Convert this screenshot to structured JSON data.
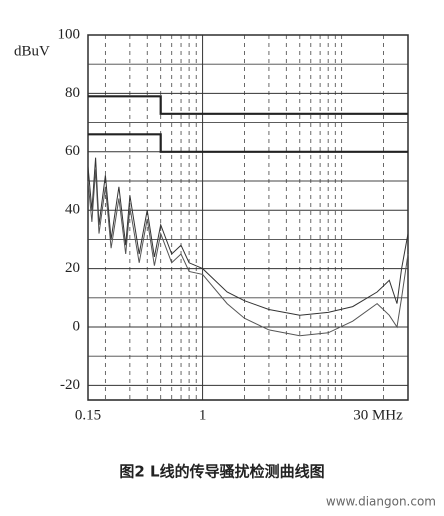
{
  "chart_data": {
    "type": "line",
    "y_label": "dBuV",
    "caption": "图2 L线的传导骚扰检测曲线图",
    "watermark": "www.diangon.com",
    "log_x": true,
    "grid": true,
    "xlim": [
      0.15,
      30
    ],
    "xticks": [
      0.15,
      1,
      {
        "value": 30,
        "label": "30 MHz"
      }
    ],
    "xminor": [
      0.2,
      0.3,
      0.4,
      0.5,
      0.6,
      0.7,
      0.8,
      0.9,
      2,
      3,
      4,
      5,
      6,
      7,
      8,
      9,
      10,
      20
    ],
    "ylim": [
      -25,
      100
    ],
    "yticks": [
      -20,
      0,
      20,
      40,
      60,
      80,
      100
    ],
    "yminor": [
      -10,
      10,
      30,
      50,
      70,
      90
    ],
    "series": [
      {
        "color": "#222",
        "x": [
          0.15,
          0.5,
          0.5,
          30
        ],
        "values": [
          79,
          79,
          73,
          73
        ]
      },
      {
        "color": "#222",
        "x": [
          0.15,
          0.5,
          0.5,
          30
        ],
        "values": [
          66,
          66,
          60,
          60
        ]
      },
      {
        "color": "#333",
        "x": [
          0.15,
          0.16,
          0.17,
          0.18,
          0.2,
          0.22,
          0.25,
          0.28,
          0.3,
          0.35,
          0.4,
          0.45,
          0.5,
          0.6,
          0.7,
          0.8,
          1,
          1.5,
          2,
          3,
          5,
          8,
          12,
          18,
          22,
          25,
          27,
          30
        ],
        "values": [
          55,
          40,
          58,
          35,
          52,
          30,
          48,
          28,
          45,
          25,
          40,
          24,
          35,
          25,
          28,
          22,
          20,
          12,
          9,
          6,
          4,
          5,
          7,
          12,
          16,
          8,
          20,
          32
        ]
      },
      {
        "color": "#555",
        "x": [
          0.15,
          0.16,
          0.17,
          0.18,
          0.2,
          0.22,
          0.25,
          0.28,
          0.3,
          0.35,
          0.4,
          0.45,
          0.5,
          0.6,
          0.7,
          0.8,
          1,
          1.5,
          2,
          3,
          5,
          8,
          12,
          18,
          22,
          25,
          27,
          30
        ],
        "values": [
          50,
          36,
          54,
          32,
          48,
          27,
          44,
          25,
          41,
          22,
          37,
          21,
          32,
          22,
          25,
          19,
          18,
          8,
          3,
          -1,
          -3,
          -2,
          2,
          8,
          4,
          0,
          10,
          25
        ]
      }
    ]
  }
}
